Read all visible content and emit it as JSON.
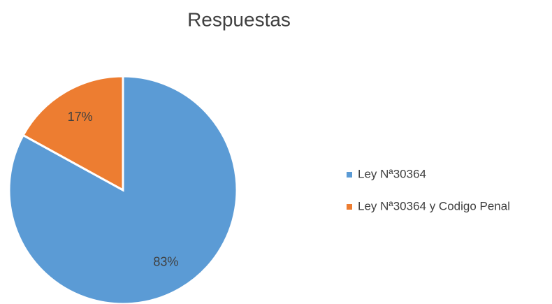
{
  "chart_data": {
    "type": "pie",
    "title": "Respuestas",
    "categories": [
      "Ley Nª30364",
      "Ley Nª30364 y Codigo Penal"
    ],
    "values": [
      83,
      17
    ],
    "value_labels": [
      "83%",
      "17%"
    ],
    "colors": [
      "#5b9bd5",
      "#ed7d31"
    ],
    "legend": "right"
  }
}
